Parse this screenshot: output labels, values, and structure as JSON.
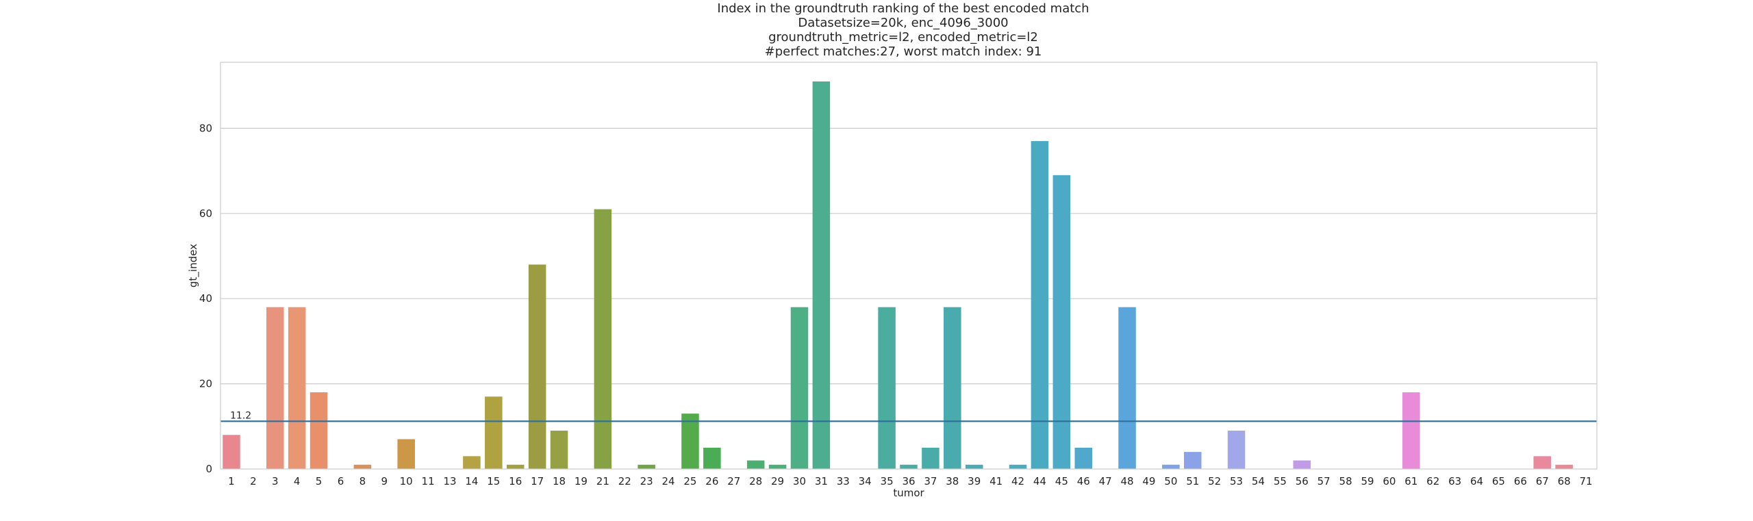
{
  "chart_data": {
    "type": "bar",
    "title_lines": [
      "Index in the groundtruth ranking of the best encoded match",
      "Datasetsize=20k, enc_4096_3000",
      "groundtruth_metric=l2, encoded_metric=l2",
      "#perfect matches:27, worst match index: 91"
    ],
    "xlabel": "tumor",
    "ylabel": "gt_index",
    "ylim": [
      0,
      95.5
    ],
    "yticks": [
      0,
      20,
      40,
      60,
      80
    ],
    "grid": true,
    "categories": [
      "1",
      "2",
      "3",
      "4",
      "5",
      "6",
      "8",
      "9",
      "10",
      "11",
      "13",
      "14",
      "15",
      "16",
      "17",
      "18",
      "19",
      "21",
      "22",
      "23",
      "24",
      "25",
      "26",
      "27",
      "28",
      "29",
      "30",
      "31",
      "33",
      "34",
      "35",
      "36",
      "37",
      "38",
      "39",
      "41",
      "42",
      "44",
      "45",
      "46",
      "47",
      "48",
      "49",
      "50",
      "51",
      "52",
      "53",
      "54",
      "55",
      "56",
      "57",
      "58",
      "59",
      "60",
      "61",
      "62",
      "63",
      "64",
      "65",
      "66",
      "67",
      "68",
      "71"
    ],
    "values": [
      8,
      0,
      38,
      38,
      18,
      0,
      1,
      0,
      7,
      0,
      0,
      3,
      17,
      1,
      48,
      9,
      0,
      61,
      0,
      1,
      0,
      13,
      5,
      0,
      2,
      1,
      38,
      91,
      0,
      0,
      38,
      1,
      5,
      38,
      1,
      0,
      1,
      77,
      69,
      5,
      0,
      38,
      0,
      1,
      4,
      0,
      9,
      0,
      0,
      2,
      0,
      0,
      0,
      0,
      18,
      0,
      0,
      0,
      0,
      0,
      3,
      1,
      0
    ],
    "colors": [
      "#e8888e",
      "#e88d7e",
      "#e8937b",
      "#e99672",
      "#e8906a",
      "#e39c6b",
      "#d9915a",
      "#d2984f",
      "#cc9847",
      "#c49b43",
      "#bb9e42",
      "#b5a242",
      "#aea340",
      "#a2a142",
      "#9c9c42",
      "#96a143",
      "#8da244",
      "#86a244",
      "#7ca347",
      "#70a446",
      "#62a646",
      "#54ab4c",
      "#4aad55",
      "#4aae63",
      "#4aaf70",
      "#4baf78",
      "#4caf86",
      "#4cae8e",
      "#4cae94",
      "#4cad9a",
      "#4aad9e",
      "#4aaca3",
      "#4aaca9",
      "#4aabaf",
      "#4aabb3",
      "#4aabb8",
      "#4aabbd",
      "#4aaac1",
      "#4daac6",
      "#50a9cc",
      "#54a8d4",
      "#5aa6dc",
      "#6aa3e2",
      "#7ba3e6",
      "#8ba2e8",
      "#99a4e9",
      "#a2a7e9",
      "#aca2e8",
      "#b69ee8",
      "#c19ae8",
      "#cc96e8",
      "#d692e8",
      "#df8fe5",
      "#e68ddf",
      "#e88bd8",
      "#e88bcd",
      "#e88bc3",
      "#e88bb9",
      "#e88baf",
      "#e88aa6",
      "#e8899e",
      "#e78a96",
      "#e68a92"
    ],
    "reference_line": {
      "value": 11.2,
      "label": "11.2",
      "color": "#2c6f9c"
    }
  }
}
